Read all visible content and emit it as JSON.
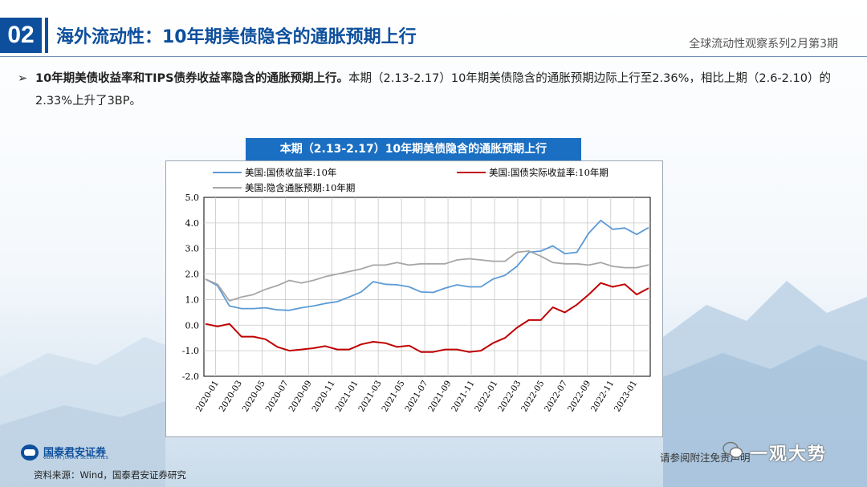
{
  "header": {
    "section_number": "02",
    "title": "海外流动性：10年期美债隐含的通胀预期上行",
    "series": "全球流动性观察系列2月第3期"
  },
  "bullet": {
    "marker": "➢",
    "bold": "10年期美债收益率和TIPS债券收益率隐含的通胀预期上行。",
    "text": "本期（2.13-2.17）10年期美债隐含的通胀预期边际上行至2.36%，相比上期（2.6-2.10）的2.33%上升了3BP。"
  },
  "footer": {
    "logo_cn": "国泰君安证券",
    "logo_en": "GUOTAI JUNAN SECURITIES",
    "source": "资料来源：Wind，国泰君安证券研究",
    "disclaimer": "请参阅附注免责声明",
    "watermark": "一观大势",
    "watermark_icon": "wechat-icon"
  },
  "chart_data": {
    "type": "line",
    "title": "本期（2.13-2.17）10年期美债隐含的通胀预期上行",
    "ylim": [
      -2.0,
      5.0
    ],
    "yticks": [
      "5.0",
      "4.0",
      "3.0",
      "2.0",
      "1.0",
      "0.0",
      "-1.0",
      "-2.0"
    ],
    "xticks": [
      "2020-01",
      "2020-03",
      "2020-05",
      "2020-07",
      "2020-09",
      "2020-11",
      "2021-01",
      "2021-03",
      "2021-05",
      "2021-07",
      "2021-09",
      "2021-11",
      "2022-01",
      "2022-03",
      "2022-05",
      "2022-07",
      "2022-09",
      "2022-11",
      "2023-01"
    ],
    "grid": true,
    "legend_position": "top",
    "x": [
      "2020-01",
      "2020-02",
      "2020-03",
      "2020-04",
      "2020-05",
      "2020-06",
      "2020-07",
      "2020-08",
      "2020-09",
      "2020-10",
      "2020-11",
      "2020-12",
      "2021-01",
      "2021-02",
      "2021-03",
      "2021-04",
      "2021-05",
      "2021-06",
      "2021-07",
      "2021-08",
      "2021-09",
      "2021-10",
      "2021-11",
      "2021-12",
      "2022-01",
      "2022-02",
      "2022-03",
      "2022-04",
      "2022-05",
      "2022-06",
      "2022-07",
      "2022-08",
      "2022-09",
      "2022-10",
      "2022-11",
      "2022-12",
      "2023-01",
      "2023-02"
    ],
    "series": [
      {
        "name": "美国:国债收益率:10年",
        "color": "#5b9bd5",
        "values": [
          1.8,
          1.55,
          0.75,
          0.65,
          0.65,
          0.68,
          0.6,
          0.58,
          0.68,
          0.75,
          0.85,
          0.92,
          1.1,
          1.3,
          1.7,
          1.6,
          1.58,
          1.5,
          1.3,
          1.28,
          1.45,
          1.58,
          1.5,
          1.5,
          1.8,
          1.95,
          2.3,
          2.85,
          2.9,
          3.1,
          2.8,
          2.85,
          3.6,
          4.1,
          3.75,
          3.8,
          3.55,
          3.82
        ]
      },
      {
        "name": "美国:国债实际收益率:10年期",
        "color": "#c00000",
        "values": [
          0.05,
          -0.05,
          0.05,
          -0.45,
          -0.45,
          -0.55,
          -0.85,
          -1.0,
          -0.95,
          -0.9,
          -0.82,
          -0.95,
          -0.95,
          -0.75,
          -0.65,
          -0.7,
          -0.85,
          -0.8,
          -1.05,
          -1.05,
          -0.95,
          -0.95,
          -1.05,
          -1.0,
          -0.7,
          -0.5,
          -0.1,
          0.2,
          0.2,
          0.7,
          0.5,
          0.8,
          1.2,
          1.65,
          1.5,
          1.6,
          1.2,
          1.45
        ]
      },
      {
        "name": "美国:隐含通胀预期:10年期",
        "color": "#a6a6a6",
        "values": [
          1.8,
          1.6,
          0.95,
          1.1,
          1.2,
          1.4,
          1.55,
          1.75,
          1.65,
          1.75,
          1.9,
          2.0,
          2.1,
          2.2,
          2.35,
          2.35,
          2.45,
          2.35,
          2.4,
          2.4,
          2.4,
          2.55,
          2.6,
          2.55,
          2.5,
          2.5,
          2.85,
          2.9,
          2.7,
          2.45,
          2.4,
          2.4,
          2.35,
          2.45,
          2.3,
          2.25,
          2.25,
          2.36
        ]
      }
    ]
  }
}
